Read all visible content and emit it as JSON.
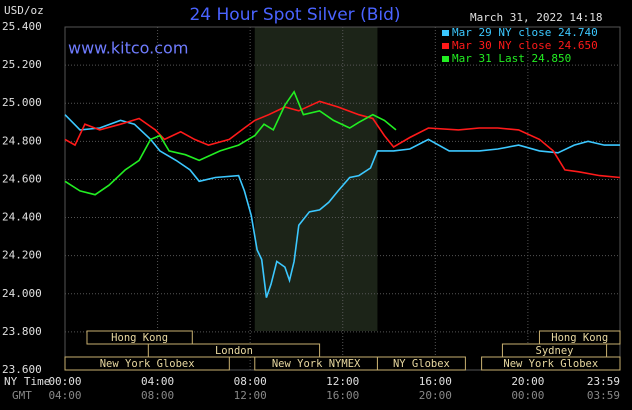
{
  "chart_data": {
    "type": "line",
    "title": "24 Hour Spot Silver (Bid)",
    "y_label": "USD/oz",
    "timestamp": "March 31, 2022 14:18",
    "watermark": "www.kitco.com",
    "x_label": "NY Time",
    "x2_label": "GMT",
    "xlim": [
      0,
      23.98
    ],
    "ylim": [
      23.6,
      25.4
    ],
    "grid": true,
    "legend": "top-right",
    "xticks": [
      {
        "value": 0,
        "label": "00:00"
      },
      {
        "value": 4,
        "label": "04:00"
      },
      {
        "value": 8,
        "label": "08:00"
      },
      {
        "value": 12,
        "label": "12:00"
      },
      {
        "value": 16,
        "label": "16:00"
      },
      {
        "value": 20,
        "label": "20:00"
      },
      {
        "value": 23.98,
        "label": "23:59"
      }
    ],
    "x2ticks": [
      {
        "value": 0,
        "label": "04:00"
      },
      {
        "value": 4,
        "label": "08:00"
      },
      {
        "value": 8,
        "label": "12:00"
      },
      {
        "value": 12,
        "label": "16:00"
      },
      {
        "value": 16,
        "label": "20:00"
      },
      {
        "value": 20,
        "label": "00:00"
      },
      {
        "value": 23.98,
        "label": "03:59"
      }
    ],
    "yticks": [
      {
        "value": 23.6,
        "label": "23.600"
      },
      {
        "value": 23.8,
        "label": "23.800"
      },
      {
        "value": 24.0,
        "label": "24.000"
      },
      {
        "value": 24.2,
        "label": "24.200"
      },
      {
        "value": 24.4,
        "label": "24.400"
      },
      {
        "value": 24.6,
        "label": "24.600"
      },
      {
        "value": 24.8,
        "label": "24.800"
      },
      {
        "value": 25.0,
        "label": "25.000"
      },
      {
        "value": 25.2,
        "label": "25.200"
      },
      {
        "value": 25.4,
        "label": "25.400"
      }
    ],
    "sessions": [
      {
        "label": "Hong Kong",
        "start": 0.95,
        "end": 5.5,
        "row": 0
      },
      {
        "label": "London",
        "start": 3.6,
        "end": 11.0,
        "row": 1
      },
      {
        "label": "New York Globex",
        "start": 0,
        "end": 7.1,
        "row": 2
      },
      {
        "label": "New York NYMEX",
        "start": 8.2,
        "end": 13.5,
        "row": 2,
        "shaded": true
      },
      {
        "label": "NY Globex",
        "start": 13.5,
        "end": 17.3,
        "row": 2
      },
      {
        "label": "Hong Kong",
        "start": 20.5,
        "end": 23.98,
        "row": 0
      },
      {
        "label": "Sydney",
        "start": 18.9,
        "end": 23.4,
        "row": 1
      },
      {
        "label": "New York Globex",
        "start": 18.0,
        "end": 23.98,
        "row": 2
      }
    ],
    "series": [
      {
        "name": "Mar 29 NY close 24.740",
        "color": "#3cc8ff",
        "x": [
          0,
          0.65,
          1.5,
          2.4,
          3,
          3.7,
          4.1,
          4.8,
          5.4,
          5.8,
          6.5,
          7.5,
          7.75,
          8.05,
          8.3,
          8.5,
          8.7,
          8.9,
          9.15,
          9.5,
          9.7,
          9.9,
          10.1,
          10.56,
          11,
          11.4,
          11.8,
          12.3,
          12.7,
          13.2,
          13.5,
          14.2,
          14.9,
          15.7,
          16.6,
          17.9,
          18.7,
          19.6,
          20.5,
          21.3,
          22,
          22.6,
          23.3,
          23.98
        ],
        "values": [
          24.94,
          24.86,
          24.87,
          24.91,
          24.89,
          24.81,
          24.75,
          24.7,
          24.65,
          24.59,
          24.61,
          24.62,
          24.54,
          24.41,
          24.23,
          24.18,
          23.98,
          24.05,
          24.17,
          24.14,
          24.07,
          24.17,
          24.36,
          24.43,
          24.44,
          24.48,
          24.54,
          24.61,
          24.62,
          24.66,
          24.75,
          24.75,
          24.76,
          24.81,
          24.75,
          24.75,
          24.76,
          24.78,
          24.75,
          24.74,
          24.78,
          24.8,
          24.78,
          24.78
        ]
      },
      {
        "name": "Mar 30 NY close 24.650",
        "color": "#ff1a1a",
        "x": [
          0,
          0.43,
          0.86,
          1.5,
          2.4,
          3.2,
          3.9,
          4.3,
          5,
          5.6,
          6.2,
          7.1,
          7.75,
          8.2,
          8.8,
          9.5,
          10.1,
          11,
          11.8,
          12.7,
          13.3,
          13.8,
          14.2,
          14.9,
          15.7,
          17,
          17.9,
          18.7,
          19.6,
          20.5,
          21.1,
          21.6,
          22.2,
          23.1,
          23.98
        ],
        "values": [
          24.81,
          24.78,
          24.89,
          24.86,
          24.89,
          24.92,
          24.86,
          24.81,
          24.85,
          24.81,
          24.78,
          24.81,
          24.87,
          24.91,
          24.94,
          24.98,
          24.96,
          25.01,
          24.98,
          24.94,
          24.92,
          24.83,
          24.77,
          24.82,
          24.87,
          24.86,
          24.87,
          24.87,
          24.86,
          24.81,
          24.75,
          24.65,
          24.64,
          24.62,
          24.61
        ]
      },
      {
        "name": "Mar 31 Last 24.850",
        "color": "#22ee22",
        "x": [
          0,
          0.65,
          1.3,
          1.9,
          2.6,
          3.2,
          3.7,
          4.1,
          4.5,
          5.2,
          5.8,
          6.7,
          7.5,
          8.2,
          8.6,
          9,
          9.5,
          9.9,
          10.3,
          11,
          11.6,
          12.3,
          12.7,
          13.3,
          13.8,
          14.3
        ],
        "values": [
          24.59,
          24.54,
          24.52,
          24.57,
          24.65,
          24.7,
          24.81,
          24.83,
          24.75,
          24.73,
          24.7,
          24.75,
          24.78,
          24.83,
          24.89,
          24.86,
          24.99,
          25.06,
          24.94,
          24.96,
          24.91,
          24.87,
          24.9,
          24.94,
          24.91,
          24.86
        ]
      }
    ]
  }
}
